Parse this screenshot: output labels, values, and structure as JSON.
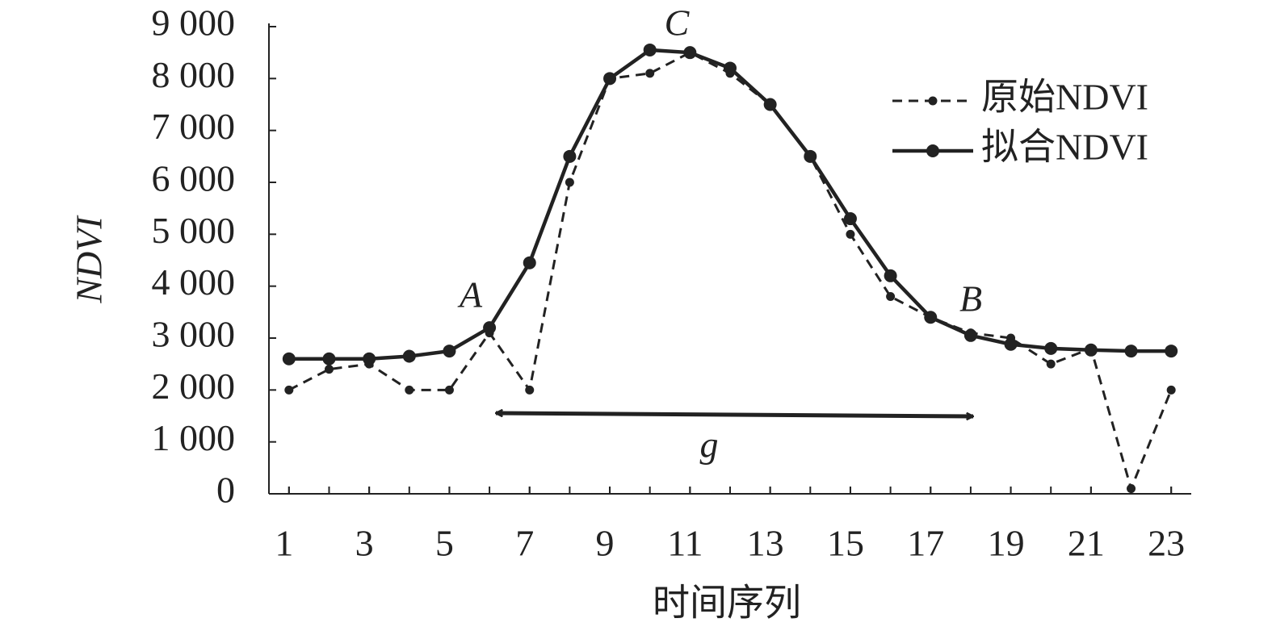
{
  "chart_data": {
    "type": "line",
    "x_label": "时间序列",
    "y_label": "NDVI",
    "x": [
      1,
      2,
      3,
      4,
      5,
      6,
      7,
      8,
      9,
      10,
      11,
      12,
      13,
      14,
      15,
      16,
      17,
      18,
      19,
      20,
      21,
      22,
      23
    ],
    "series": [
      {
        "name": "原始NDVI",
        "color": "#222222",
        "style": "dashed",
        "values": [
          2000,
          2400,
          2500,
          2000,
          2000,
          3100,
          2000,
          6000,
          8000,
          8100,
          8500,
          8100,
          7500,
          6500,
          5000,
          3800,
          3400,
          3100,
          3000,
          2500,
          2800,
          100,
          2000
        ]
      },
      {
        "name": "拟合NDVI",
        "color": "#222222",
        "style": "solid",
        "values": [
          2600,
          2600,
          2600,
          2650,
          2750,
          3200,
          4450,
          6500,
          8000,
          8550,
          8500,
          8200,
          7500,
          6500,
          5300,
          4200,
          3400,
          3050,
          2880,
          2800,
          2770,
          2750,
          2750
        ]
      }
    ],
    "xlim": [
      0.5,
      23.5
    ],
    "xticks": [
      1,
      3,
      5,
      7,
      9,
      11,
      13,
      15,
      17,
      19,
      21,
      23
    ],
    "ylim": [
      0,
      9000
    ],
    "yticks": [
      0,
      {
        "value": 1000,
        "label": "1 000"
      },
      {
        "value": 2000,
        "label": "2 000"
      },
      {
        "value": 3000,
        "label": "3 000"
      },
      {
        "value": 4000,
        "label": "4 000"
      },
      {
        "value": 5000,
        "label": "5 000"
      },
      {
        "value": 6000,
        "label": "6 000"
      },
      {
        "value": 7000,
        "label": "7 000"
      },
      {
        "value": 8000,
        "label": "8 000"
      },
      {
        "value": 9000,
        "label": "9 000"
      }
    ],
    "annotations": [
      "A",
      "B",
      "C",
      "g"
    ],
    "legend": "upper right",
    "grid": false
  }
}
